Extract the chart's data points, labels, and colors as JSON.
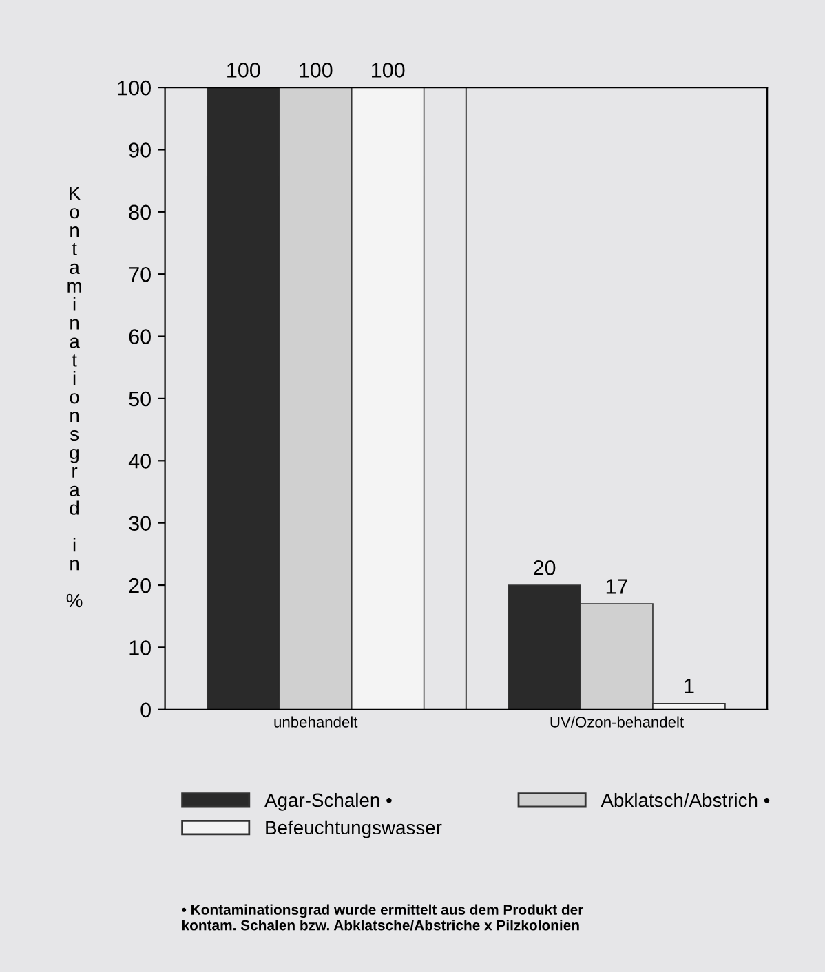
{
  "chart_data": {
    "type": "bar",
    "ylabel": "Kontaminationsgrad in %",
    "categories": [
      "unbehandelt",
      "UV/Ozon-behandelt"
    ],
    "series": [
      {
        "name": "Agar-Schalen •",
        "color": "#2a2a2a",
        "values": [
          100,
          20
        ]
      },
      {
        "name": "Abklatsch/Abstrich •",
        "color": "#d0d0d0",
        "values": [
          100,
          17
        ]
      },
      {
        "name": "Befeuchtungswasser",
        "color": "#f4f4f4",
        "values": [
          100,
          1
        ]
      }
    ],
    "ylim": [
      0,
      100
    ],
    "yticks": [
      0,
      10,
      20,
      30,
      40,
      50,
      60,
      70,
      80,
      90,
      100
    ],
    "data_labels": true,
    "grid": false,
    "legend": "bottom",
    "annotations": [
      "• Kontaminationsgrad wurde ermittelt aus dem Produkt der\nkontam. Schalen bzw. Abklatsche/Abstriche x Pilzkolonien"
    ]
  }
}
